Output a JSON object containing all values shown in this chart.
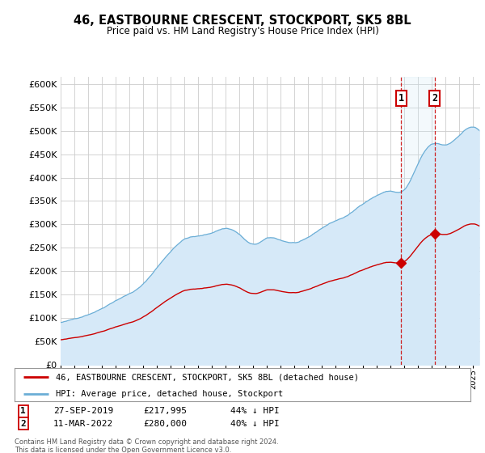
{
  "title": "46, EASTBOURNE CRESCENT, STOCKPORT, SK5 8BL",
  "subtitle": "Price paid vs. HM Land Registry's House Price Index (HPI)",
  "ylabel_ticks": [
    "£0",
    "£50K",
    "£100K",
    "£150K",
    "£200K",
    "£250K",
    "£300K",
    "£350K",
    "£400K",
    "£450K",
    "£500K",
    "£550K",
    "£600K"
  ],
  "ytick_values": [
    0,
    50000,
    100000,
    150000,
    200000,
    250000,
    300000,
    350000,
    400000,
    450000,
    500000,
    550000,
    600000
  ],
  "ylim": [
    0,
    615000
  ],
  "xlim_start": 1995.0,
  "xlim_end": 2025.5,
  "hpi_color": "#6baed6",
  "hpi_fill_color": "#d6e9f8",
  "property_color": "#cc0000",
  "sale1_date": 2019.75,
  "sale1_price": 217995,
  "sale1_label": "1",
  "sale2_date": 2022.2,
  "sale2_price": 280000,
  "sale2_label": "2",
  "legend_property": "46, EASTBOURNE CRESCENT, STOCKPORT, SK5 8BL (detached house)",
  "legend_hpi": "HPI: Average price, detached house, Stockport",
  "table_row1": [
    "1",
    "27-SEP-2019",
    "£217,995",
    "44% ↓ HPI"
  ],
  "table_row2": [
    "2",
    "11-MAR-2022",
    "£280,000",
    "40% ↓ HPI"
  ],
  "footnote": "Contains HM Land Registry data © Crown copyright and database right 2024.\nThis data is licensed under the Open Government Licence v3.0.",
  "background_color": "#ffffff",
  "grid_color": "#cccccc"
}
